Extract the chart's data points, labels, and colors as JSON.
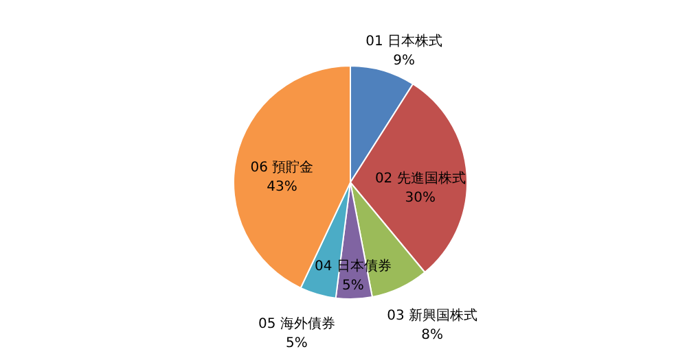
{
  "chart_data": {
    "type": "pie",
    "categories": [
      "01 日本株式",
      "02 先進国株式",
      "03 新興国株式",
      "04 日本債券",
      "05 海外債券",
      "06 預貯金"
    ],
    "values": [
      9,
      30,
      8,
      5,
      5,
      43
    ],
    "value_labels": [
      "9%",
      "30%",
      "8%",
      "5%",
      "5%",
      "43%"
    ],
    "colors": [
      "#4f81bd",
      "#c0504d",
      "#9bbb59",
      "#8064a2",
      "#4bacc6",
      "#f79646"
    ]
  }
}
